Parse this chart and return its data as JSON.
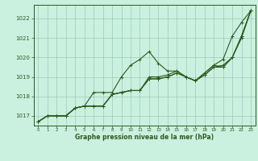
{
  "title": "Graphe pression niveau de la mer (hPa)",
  "bg_color": "#caf0e0",
  "grid_color": "#99ccbb",
  "line_color": "#2d5a1b",
  "xlim": [
    -0.5,
    23.5
  ],
  "ylim": [
    1016.5,
    1022.7
  ],
  "yticks": [
    1017,
    1018,
    1019,
    1020,
    1021,
    1022
  ],
  "xticks": [
    0,
    1,
    2,
    3,
    4,
    5,
    6,
    7,
    8,
    9,
    10,
    11,
    12,
    13,
    14,
    15,
    16,
    17,
    18,
    19,
    20,
    21,
    22,
    23
  ],
  "series": [
    [
      1016.7,
      1017.0,
      1017.0,
      1017.0,
      1017.4,
      1017.5,
      1018.2,
      1018.2,
      1018.2,
      1019.0,
      1019.6,
      1019.9,
      1020.3,
      1019.7,
      1019.3,
      1019.3,
      1019.0,
      1018.8,
      1019.2,
      1019.6,
      1019.9,
      1021.1,
      1021.8,
      1022.4
    ],
    [
      1016.7,
      1017.0,
      1017.0,
      1017.0,
      1017.4,
      1017.5,
      1017.5,
      1017.5,
      1018.1,
      1018.2,
      1018.3,
      1018.3,
      1019.0,
      1019.0,
      1019.1,
      1019.3,
      1019.0,
      1018.8,
      1019.2,
      1019.6,
      1019.5,
      1020.0,
      1021.1,
      1022.4
    ],
    [
      1016.7,
      1017.0,
      1017.0,
      1017.0,
      1017.4,
      1017.5,
      1017.5,
      1017.5,
      1018.1,
      1018.2,
      1018.3,
      1018.3,
      1018.9,
      1018.9,
      1019.0,
      1019.2,
      1019.0,
      1018.8,
      1019.1,
      1019.5,
      1019.5,
      1020.0,
      1021.0,
      1022.4
    ],
    [
      1016.7,
      1017.0,
      1017.0,
      1017.0,
      1017.4,
      1017.5,
      1017.5,
      1017.5,
      1018.1,
      1018.2,
      1018.3,
      1018.3,
      1018.9,
      1018.9,
      1019.0,
      1019.2,
      1019.0,
      1018.8,
      1019.1,
      1019.5,
      1019.6,
      1020.0,
      1021.1,
      1022.4
    ]
  ]
}
